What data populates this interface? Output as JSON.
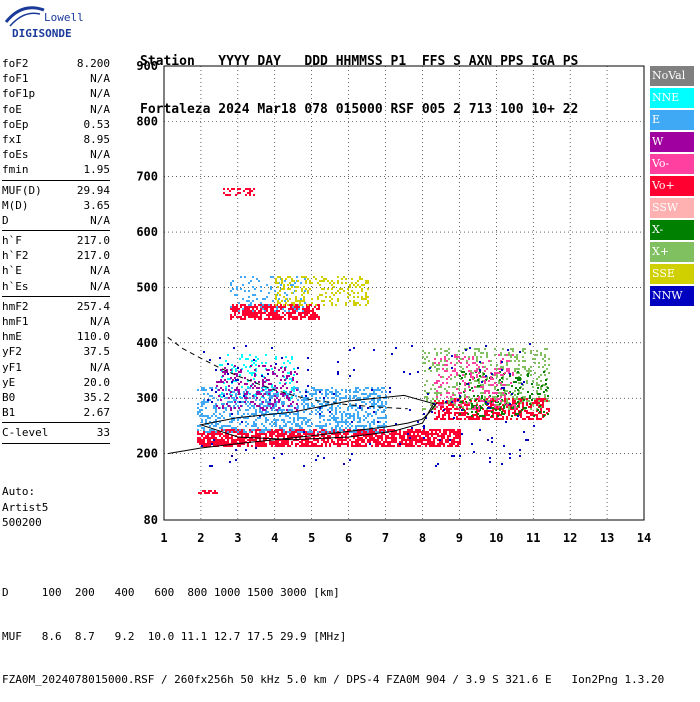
{
  "logo": {
    "line1": "Lowell",
    "line2": "DIGISONDE"
  },
  "header": {
    "labels": [
      "Station",
      "YYYY",
      "DAY",
      "DDD",
      "HHMMSS",
      "P1",
      "FFS",
      "S",
      "AXN",
      "PPS",
      "IGA",
      "PS"
    ],
    "values": [
      "Fortaleza",
      "2024",
      "Mar18",
      "078",
      "015000",
      "RSF",
      "005",
      "2",
      "713",
      "100",
      "10+",
      "22"
    ]
  },
  "params": {
    "group1": [
      {
        "name": "foF2",
        "value": "8.200"
      },
      {
        "name": "foF1",
        "value": "N/A"
      },
      {
        "name": "foF1p",
        "value": "N/A"
      },
      {
        "name": "foE",
        "value": "N/A"
      },
      {
        "name": "foEp",
        "value": "0.53"
      },
      {
        "name": "fxI",
        "value": "8.95"
      },
      {
        "name": "foEs",
        "value": "N/A"
      },
      {
        "name": "fmin",
        "value": "1.95"
      }
    ],
    "group2": [
      {
        "name": "MUF(D)",
        "value": "29.94"
      },
      {
        "name": "M(D)",
        "value": "3.65"
      },
      {
        "name": "D",
        "value": "N/A"
      }
    ],
    "group3": [
      {
        "name": "h`F",
        "value": "217.0"
      },
      {
        "name": "h`F2",
        "value": "217.0"
      },
      {
        "name": "h`E",
        "value": "N/A"
      },
      {
        "name": "h`Es",
        "value": "N/A"
      }
    ],
    "group4": [
      {
        "name": "hmF2",
        "value": "257.4"
      },
      {
        "name": "hmF1",
        "value": "N/A"
      },
      {
        "name": "hmE",
        "value": "110.0"
      },
      {
        "name": "yF2",
        "value": "37.5"
      },
      {
        "name": "yF1",
        "value": "N/A"
      },
      {
        "name": "yE",
        "value": "20.0"
      },
      {
        "name": "B0",
        "value": "35.2"
      },
      {
        "name": "B1",
        "value": "2.67"
      }
    ],
    "group5": [
      {
        "name": "C-level",
        "value": "33"
      }
    ]
  },
  "auto": {
    "line1": "Auto:",
    "line2": "Artist5",
    "line3": "500200"
  },
  "legend": [
    {
      "label": "NoVal",
      "color": "#808080"
    },
    {
      "label": "NNE",
      "color": "#00ffff"
    },
    {
      "label": "E",
      "color": "#3fa9f5"
    },
    {
      "label": "W",
      "color": "#a000a0"
    },
    {
      "label": "Vo-",
      "color": "#ff40a0"
    },
    {
      "label": "Vo+",
      "color": "#ff0030"
    },
    {
      "label": "SSW",
      "color": "#ffb0b0"
    },
    {
      "label": "X-",
      "color": "#008000"
    },
    {
      "label": "X+",
      "color": "#80c060"
    },
    {
      "label": "SSE",
      "color": "#d0d000"
    },
    {
      "label": "NNW",
      "color": "#0000c0"
    }
  ],
  "footer": {
    "d_line": "D     100  200   400   600  800 1000 1500 3000 [km]",
    "muf_line": "MUF   8.6  8.7   9.2  10.0 11.1 12.7 17.5 29.9 [MHz]",
    "file_line": "FZA0M_2024078015000.RSF / 260fx256h 50 kHz 5.0 km / DPS-4 FZA0M 904 / 3.9 S 321.6 E   Ion2Png 1.3.20"
  },
  "chart_data": {
    "type": "scatter",
    "title": "",
    "xlabel": "",
    "ylabel": "",
    "xlim": [
      1,
      14
    ],
    "ylim": [
      80,
      900
    ],
    "x_ticks": [
      1,
      2,
      3,
      4,
      5,
      6,
      7,
      8,
      9,
      10,
      11,
      12,
      13,
      14
    ],
    "y_ticks": [
      80,
      200,
      300,
      400,
      500,
      600,
      700,
      800,
      900
    ],
    "grid": true,
    "legend_placement": "right",
    "clusters": [
      {
        "series": "Vo+",
        "x": [
          1.9,
          9.0
        ],
        "y": [
          215,
          245
        ],
        "rate": 0.7
      },
      {
        "series": "Vo+",
        "x": [
          8.3,
          11.4
        ],
        "y": [
          262,
          300
        ],
        "rate": 0.5
      },
      {
        "series": "Vo+",
        "x": [
          2.8,
          5.2
        ],
        "y": [
          445,
          470
        ],
        "rate": 0.7
      },
      {
        "series": "Vo+",
        "x": [
          2.6,
          3.4
        ],
        "y": [
          668,
          680
        ],
        "rate": 0.4
      },
      {
        "series": "Vo+",
        "x": [
          1.8,
          2.4
        ],
        "y": [
          128,
          135
        ],
        "rate": 0.6
      },
      {
        "series": "E",
        "x": [
          1.9,
          7.0
        ],
        "y": [
          240,
          320
        ],
        "rate": 0.35
      },
      {
        "series": "E",
        "x": [
          2.8,
          4.8
        ],
        "y": [
          460,
          520
        ],
        "rate": 0.12
      },
      {
        "series": "NNE",
        "x": [
          2.5,
          4.5
        ],
        "y": [
          300,
          380
        ],
        "rate": 0.12
      },
      {
        "series": "W",
        "x": [
          2.4,
          4.6
        ],
        "y": [
          280,
          360
        ],
        "rate": 0.18
      },
      {
        "series": "X+",
        "x": [
          8.0,
          11.4
        ],
        "y": [
          280,
          390
        ],
        "rate": 0.2
      },
      {
        "series": "X-",
        "x": [
          9.0,
          11.4
        ],
        "y": [
          270,
          350
        ],
        "rate": 0.14
      },
      {
        "series": "SSE",
        "x": [
          4.0,
          6.5
        ],
        "y": [
          470,
          520
        ],
        "rate": 0.25
      },
      {
        "series": "Vo-",
        "x": [
          8.3,
          10.5
        ],
        "y": [
          280,
          380
        ],
        "rate": 0.16
      },
      {
        "series": "NNW",
        "x": [
          2.0,
          11.0
        ],
        "y": [
          180,
          400
        ],
        "rate": 0.015
      }
    ],
    "trace_dashed": {
      "x": [
        1.1,
        1.5,
        2.0,
        2.5,
        3.0,
        3.5,
        4.0,
        4.5,
        5.0,
        6.0,
        7.0,
        7.6
      ],
      "y": [
        410,
        390,
        372,
        355,
        340,
        327,
        315,
        305,
        297,
        288,
        283,
        281
      ]
    },
    "trace_solid": {
      "x": [
        1.1,
        2.0,
        3.0,
        4.0,
        5.0,
        6.0,
        7.0,
        7.6,
        8.0,
        8.2,
        8.4
      ],
      "y": [
        200,
        210,
        218,
        225,
        232,
        240,
        248,
        255,
        262,
        275,
        292
      ]
    },
    "trace_oval": {
      "x": [
        2.0,
        3.0,
        4.5,
        6.0,
        7.2,
        8.0,
        8.3,
        7.5,
        6.0,
        4.5,
        3.0,
        2.0
      ],
      "y": [
        252,
        230,
        225,
        230,
        240,
        255,
        290,
        305,
        295,
        275,
        265,
        252
      ]
    }
  }
}
